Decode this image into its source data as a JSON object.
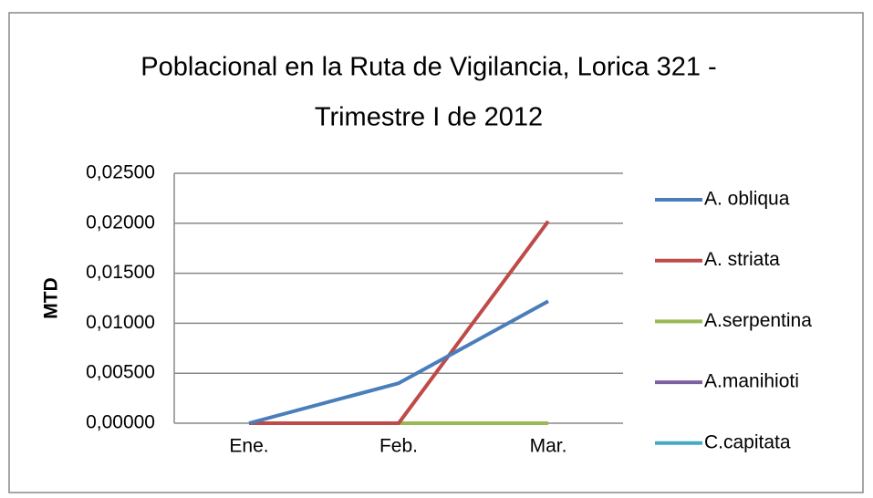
{
  "chart_data": {
    "type": "line",
    "title": [
      "Poblacional  en la Ruta de Vigilancia, Lorica 321 -",
      "Trimestre I de 2012"
    ],
    "ylabel": "MTD",
    "categories": [
      "Ene.",
      "Feb.",
      "Mar."
    ],
    "series": [
      {
        "name": "A. obliqua",
        "color": "#4a7ebb",
        "values": [
          0,
          0.004,
          0.0122
        ]
      },
      {
        "name": "A. striata",
        "color": "#be4b48",
        "values": [
          0,
          0,
          0.0202
        ]
      },
      {
        "name": "A.serpentina",
        "color": "#98b954",
        "values": [
          0,
          0,
          0
        ]
      },
      {
        "name": "A.manihioti",
        "color": "#7d60a0",
        "values": [
          0,
          0,
          0
        ]
      },
      {
        "name": "C.capitata",
        "color": "#46aac5",
        "values": [
          0,
          0,
          0
        ]
      }
    ],
    "ylim": [
      0,
      0.025
    ],
    "yticks": [
      {
        "value": 0,
        "label": "0,00000"
      },
      {
        "value": 0.005,
        "label": "0,00500"
      },
      {
        "value": 0.01,
        "label": "0,01000"
      },
      {
        "value": 0.015,
        "label": "0,01500"
      },
      {
        "value": 0.02,
        "label": "0,02000"
      },
      {
        "value": 0.025,
        "label": "0,02500"
      }
    ],
    "grid": true
  }
}
